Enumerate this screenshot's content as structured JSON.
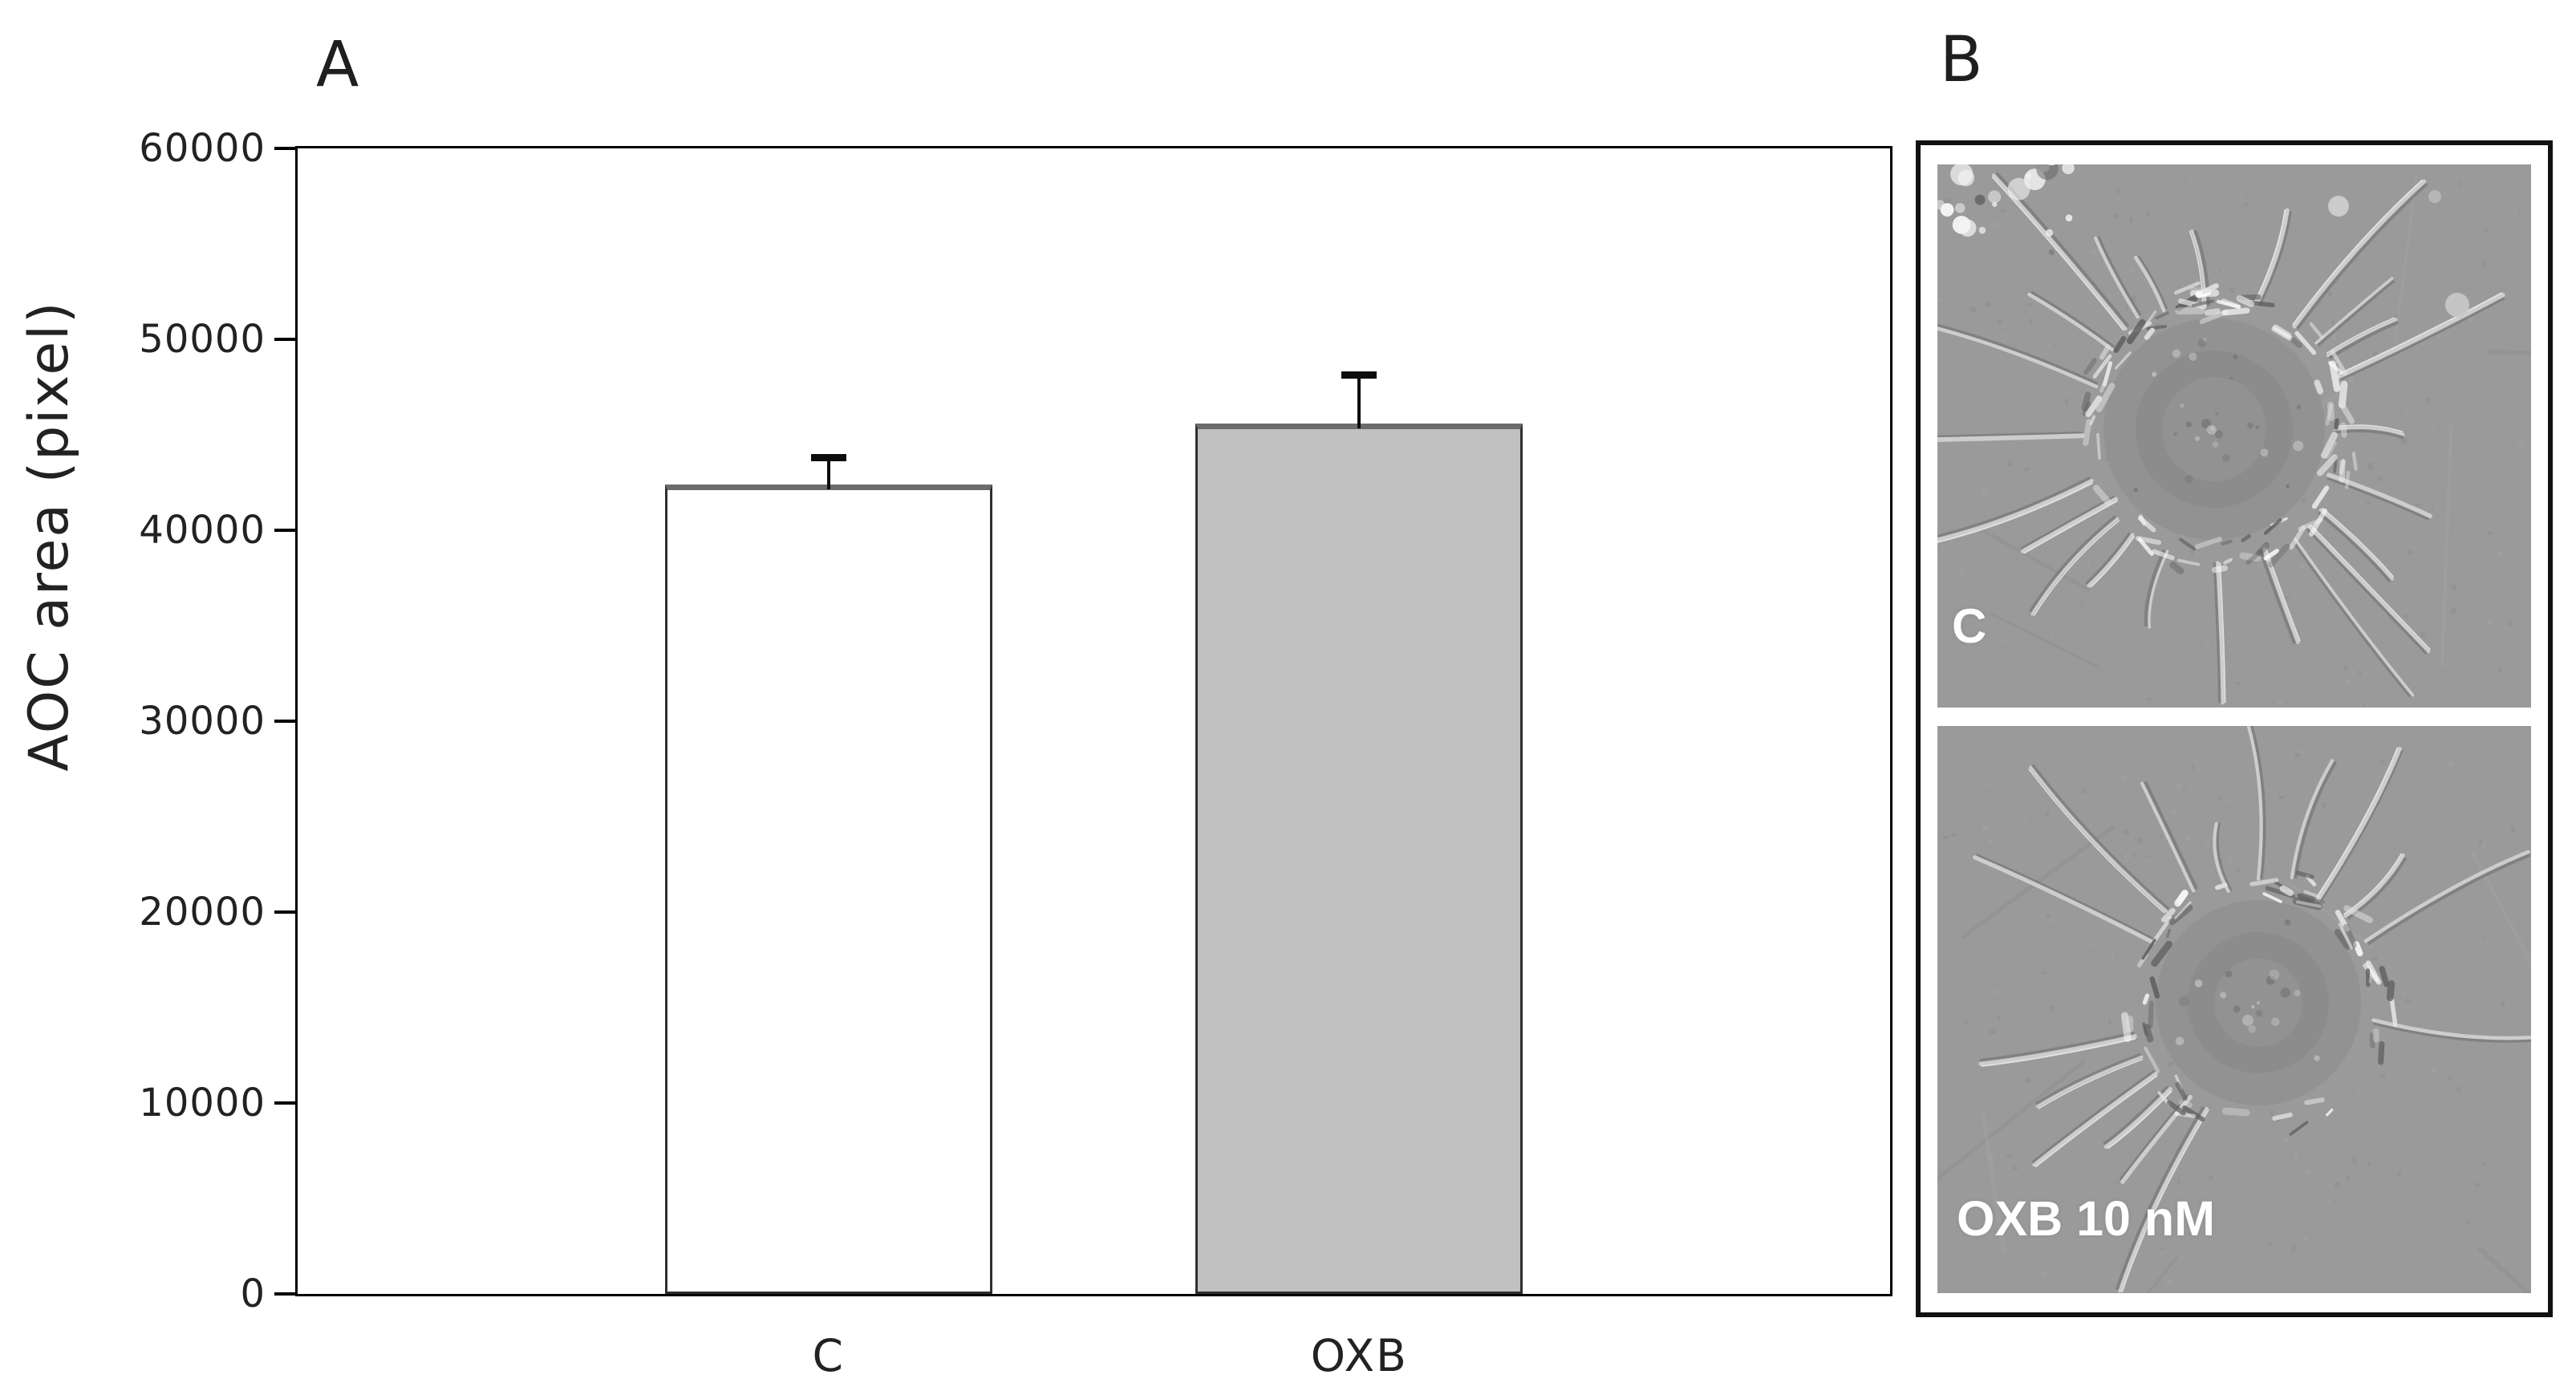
{
  "panels": {
    "a_label": "A",
    "b_label": "B"
  },
  "chart_data": {
    "type": "bar",
    "title": "",
    "xlabel": "",
    "ylabel": "AOC area (pixel)",
    "categories": [
      "C",
      "OXB"
    ],
    "values": [
      42400,
      45600
    ],
    "error_plus": [
      1600,
      2700
    ],
    "ylim": [
      0,
      60000
    ],
    "yticks": [
      0,
      10000,
      20000,
      30000,
      40000,
      50000,
      60000
    ],
    "grid": false,
    "legend": null,
    "bar_fill_colors": [
      "#ffffff",
      "#c1c1c1"
    ],
    "bar_edge_color": "#2e2e2e",
    "axis_color": "#000000"
  },
  "micrographs": {
    "top_label": "C",
    "bottom_label": "OXB 10 nM",
    "label_color": "#ffffff",
    "background_color": "#9a9a9a"
  }
}
